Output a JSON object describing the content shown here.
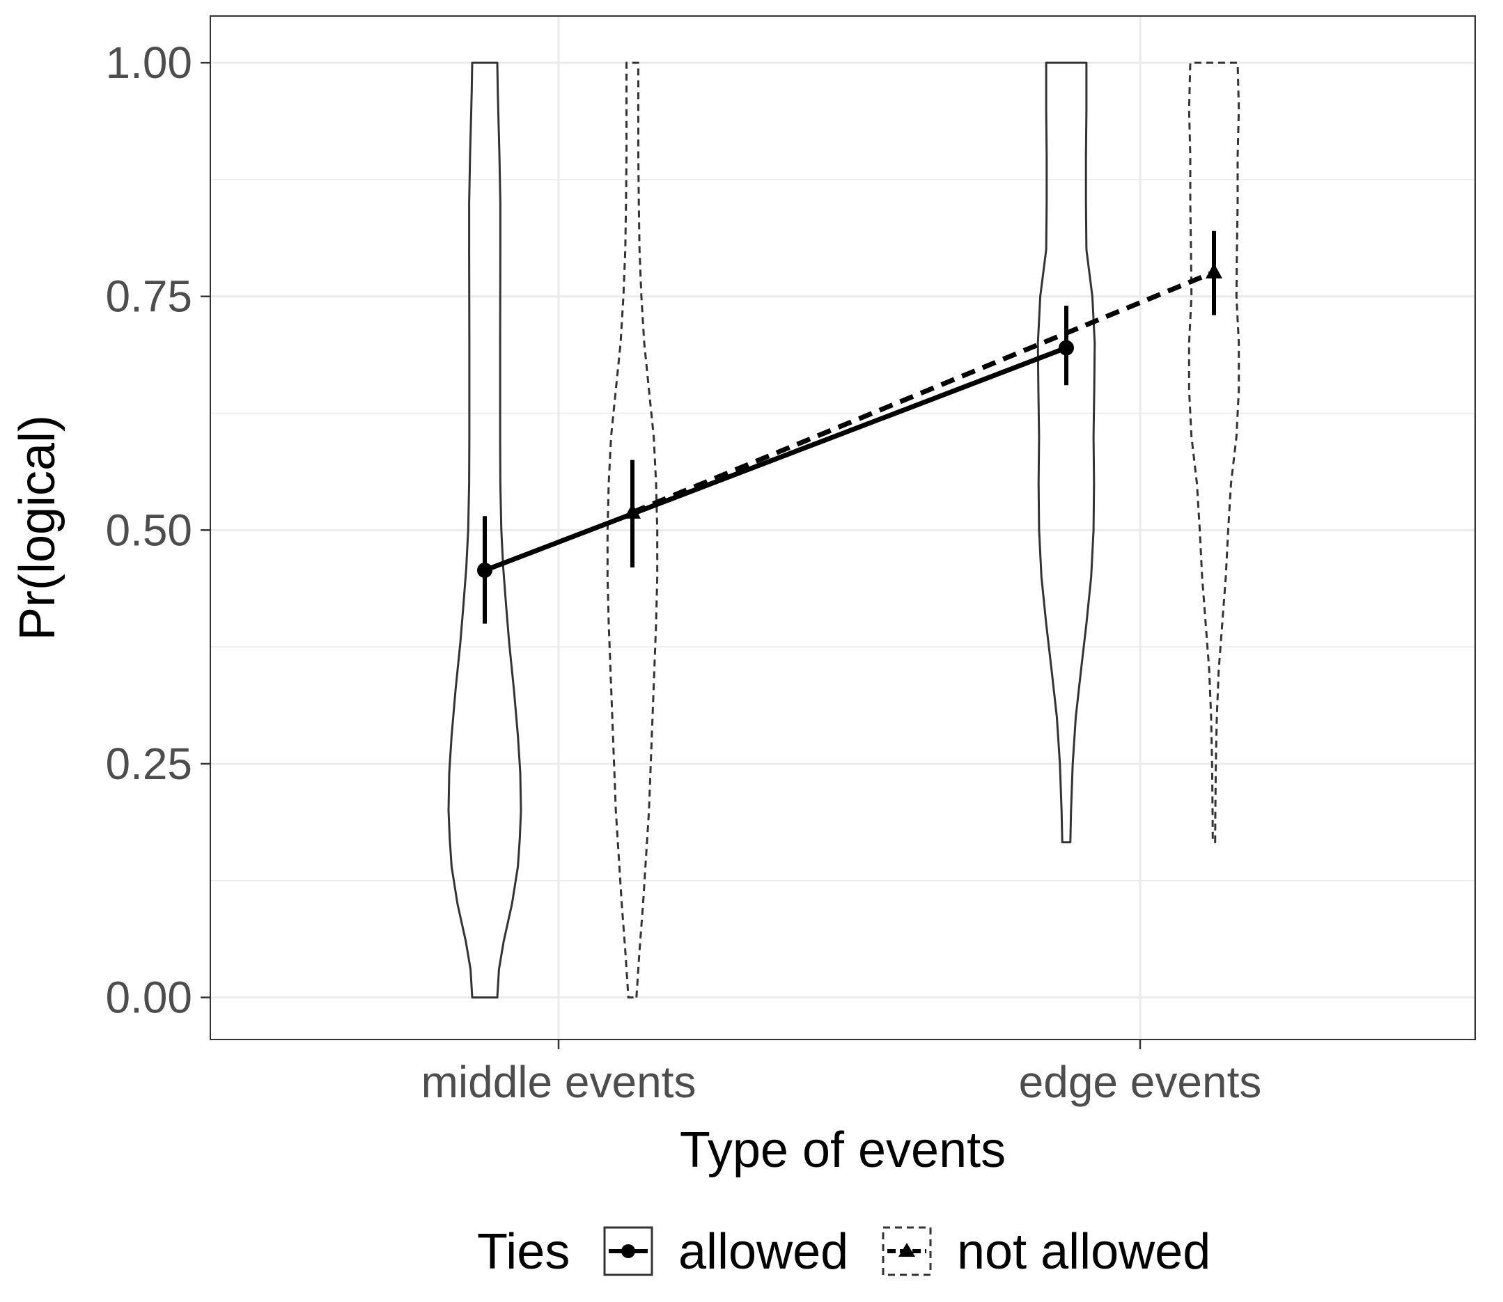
{
  "chart_data": {
    "type": "line",
    "categories": [
      "middle events",
      "edge events"
    ],
    "xlabel": "Type of events",
    "ylabel": "Pr(logical)",
    "ylim": [
      -0.045,
      1.05
    ],
    "yticks": [
      "0.00",
      "0.25",
      "0.50",
      "0.75",
      "1.00"
    ],
    "ytick_values": [
      0,
      0.25,
      0.5,
      0.75,
      1.0
    ],
    "grid": true,
    "legend": {
      "title": "Ties",
      "placement": "bottom",
      "entries": [
        "allowed",
        "not allowed"
      ]
    },
    "series": [
      {
        "name": "allowed",
        "marker": "circle",
        "linestyle": "solid",
        "values": [
          0.457,
          0.695
        ],
        "ci_low": [
          0.4,
          0.655
        ],
        "ci_high": [
          0.515,
          0.74
        ],
        "violins": [
          {
            "category": "middle events",
            "min": 0.0,
            "max": 1.0,
            "profile": [
              [
                0.0,
                0.053
              ],
              [
                0.03,
                0.06
              ],
              [
                0.06,
                0.08
              ],
              [
                0.1,
                0.115
              ],
              [
                0.14,
                0.14
              ],
              [
                0.17,
                0.148
              ],
              [
                0.2,
                0.153
              ],
              [
                0.24,
                0.15
              ],
              [
                0.28,
                0.14
              ],
              [
                0.33,
                0.123
              ],
              [
                0.38,
                0.103
              ],
              [
                0.42,
                0.09
              ],
              [
                0.46,
                0.078
              ],
              [
                0.5,
                0.07
              ],
              [
                0.55,
                0.066
              ],
              [
                0.6,
                0.065
              ],
              [
                0.7,
                0.065
              ],
              [
                0.8,
                0.066
              ],
              [
                0.85,
                0.066
              ],
              [
                0.9,
                0.062
              ],
              [
                0.94,
                0.058
              ],
              [
                0.97,
                0.055
              ],
              [
                1.0,
                0.053
              ]
            ]
          },
          {
            "category": "edge events",
            "min": 0.166,
            "max": 1.0,
            "profile": [
              [
                0.166,
                0.017
              ],
              [
                0.2,
                0.02
              ],
              [
                0.25,
                0.027
              ],
              [
                0.3,
                0.04
              ],
              [
                0.35,
                0.062
              ],
              [
                0.4,
                0.085
              ],
              [
                0.45,
                0.105
              ],
              [
                0.5,
                0.115
              ],
              [
                0.55,
                0.117
              ],
              [
                0.6,
                0.115
              ],
              [
                0.65,
                0.118
              ],
              [
                0.7,
                0.12
              ],
              [
                0.75,
                0.11
              ],
              [
                0.8,
                0.085
              ],
              [
                0.85,
                0.083
              ],
              [
                0.9,
                0.083
              ],
              [
                0.95,
                0.085
              ],
              [
                1.0,
                0.085
              ]
            ]
          }
        ]
      },
      {
        "name": "not allowed",
        "marker": "triangle",
        "linestyle": "dashed",
        "values": [
          0.519,
          0.776
        ],
        "ci_low": [
          0.46,
          0.73
        ],
        "ci_high": [
          0.575,
          0.82
        ],
        "violins": [
          {
            "category": "middle events",
            "min": 0.0,
            "max": 1.0,
            "profile": [
              [
                0.0,
                0.017
              ],
              [
                0.05,
                0.03
              ],
              [
                0.1,
                0.045
              ],
              [
                0.2,
                0.07
              ],
              [
                0.3,
                0.085
              ],
              [
                0.4,
                0.1
              ],
              [
                0.45,
                0.105
              ],
              [
                0.5,
                0.105
              ],
              [
                0.55,
                0.1
              ],
              [
                0.6,
                0.09
              ],
              [
                0.65,
                0.07
              ],
              [
                0.7,
                0.05
              ],
              [
                0.75,
                0.038
              ],
              [
                0.8,
                0.03
              ],
              [
                0.85,
                0.027
              ],
              [
                0.9,
                0.025
              ],
              [
                0.95,
                0.025
              ],
              [
                1.0,
                0.025
              ]
            ]
          },
          {
            "category": "edge events",
            "min": 0.166,
            "max": 1.0,
            "profile": [
              [
                0.166,
                0.005
              ],
              [
                0.2,
                0.006
              ],
              [
                0.25,
                0.008
              ],
              [
                0.3,
                0.012
              ],
              [
                0.35,
                0.02
              ],
              [
                0.4,
                0.035
              ],
              [
                0.45,
                0.05
              ],
              [
                0.5,
                0.06
              ],
              [
                0.55,
                0.072
              ],
              [
                0.6,
                0.095
              ],
              [
                0.65,
                0.105
              ],
              [
                0.7,
                0.105
              ],
              [
                0.75,
                0.095
              ],
              [
                0.8,
                0.097
              ],
              [
                0.85,
                0.1
              ],
              [
                0.9,
                0.1
              ],
              [
                0.95,
                0.105
              ],
              [
                1.0,
                0.1
              ]
            ]
          }
        ]
      }
    ]
  }
}
